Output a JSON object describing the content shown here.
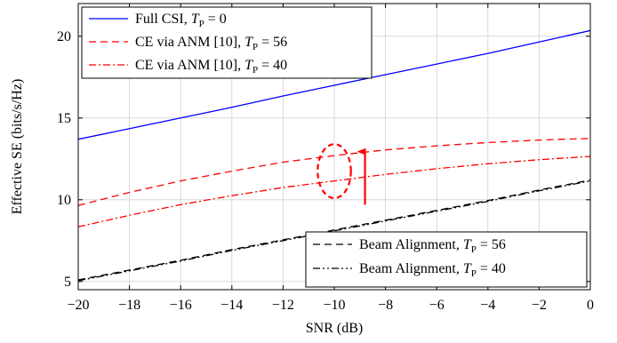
{
  "chart_data": {
    "type": "line",
    "xlabel": "SNR (dB)",
    "ylabel": "Effective SE (bits/s/Hz)",
    "xlim": [
      -20,
      0
    ],
    "ylim": [
      4.5,
      22
    ],
    "xticks": [
      -20,
      -18,
      -16,
      -14,
      -12,
      -10,
      -8,
      -6,
      -4,
      -2,
      0
    ],
    "xtick_labels": [
      "−20",
      "−18",
      "−16",
      "−14",
      "−12",
      "−10",
      "−8",
      "−6",
      "−4",
      "−2",
      "0"
    ],
    "yticks": [
      5,
      10,
      15,
      20
    ],
    "ytick_labels": [
      "5",
      "10",
      "15",
      "20"
    ],
    "grid": true,
    "legend_upper": "top-left",
    "legend_lower": "bottom-right",
    "x": [
      -20,
      -18,
      -16,
      -14,
      -12,
      -10,
      -8,
      -6,
      -4,
      -2,
      0
    ],
    "series": [
      {
        "name": "Full CSI, T_P = 0",
        "name_text": "Full CSI, ",
        "tp": "0",
        "color": "#0000ff",
        "dash": "solid",
        "legend": "upper",
        "values": [
          13.7,
          14.35,
          15.0,
          15.65,
          16.35,
          17.0,
          17.65,
          18.3,
          18.95,
          19.65,
          20.35
        ]
      },
      {
        "name": "CE via ANM [10], T_P = 56",
        "name_text": "CE via ANM [10], ",
        "tp": "56",
        "color": "#ff0000",
        "dash": "dashed",
        "legend": "upper",
        "values": [
          9.65,
          10.45,
          11.15,
          11.75,
          12.3,
          12.7,
          13.05,
          13.3,
          13.5,
          13.65,
          13.75
        ]
      },
      {
        "name": "CE via ANM [10], T_P = 40",
        "name_text": "CE via ANM [10], ",
        "tp": "40",
        "color": "#ff0000",
        "dash": "dashdot",
        "legend": "upper",
        "values": [
          8.35,
          9.05,
          9.7,
          10.25,
          10.75,
          11.15,
          11.55,
          11.9,
          12.2,
          12.45,
          12.65
        ]
      },
      {
        "name": "Beam Alignment, T_P = 56",
        "name_text": "Beam Alignment, ",
        "tp": "56",
        "color": "#000000",
        "dash": "dashed",
        "legend": "lower",
        "values": [
          5.1,
          5.7,
          6.3,
          6.95,
          7.55,
          8.15,
          8.75,
          9.35,
          9.95,
          10.6,
          11.2
        ]
      },
      {
        "name": "Beam Alignment, T_P = 40",
        "name_text": "Beam Alignment, ",
        "tp": "40",
        "color": "#000000",
        "dash": "dashdotdot",
        "legend": "lower",
        "values": [
          5.05,
          5.65,
          6.25,
          6.9,
          7.5,
          8.1,
          8.7,
          9.3,
          9.9,
          10.55,
          11.15
        ]
      }
    ],
    "annotations": {
      "ellipse": {
        "x": -10,
        "y": 11.75,
        "rx_db": 0.65,
        "ry_se": 1.65,
        "color": "#ff0000"
      },
      "arrow": {
        "x": -8.8,
        "y_from": 9.7,
        "y_to": 13.05,
        "color": "#ff0000"
      }
    }
  }
}
